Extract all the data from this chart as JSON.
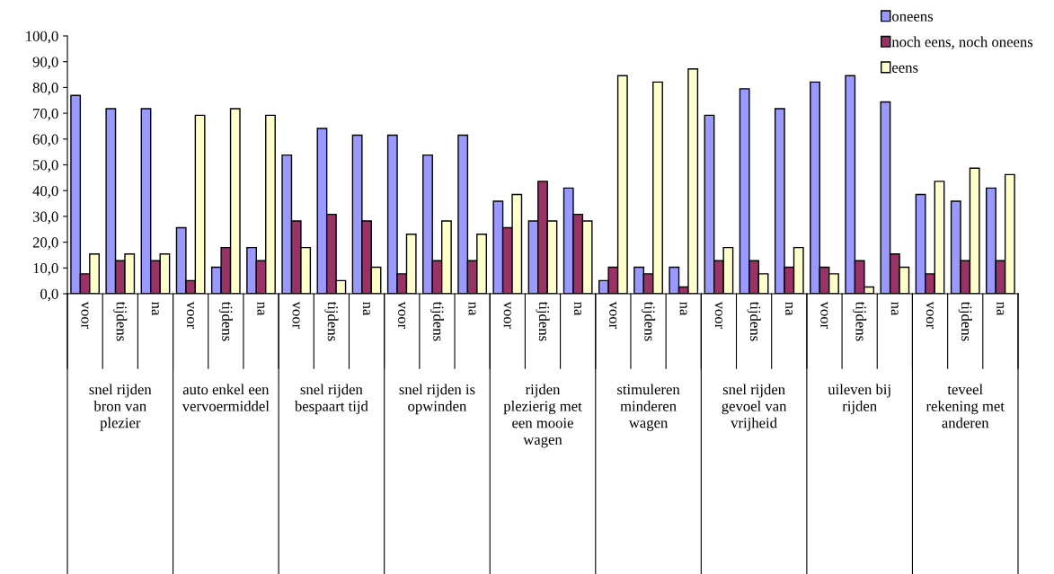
{
  "chart_data": {
    "type": "bar",
    "categories": [
      "voor",
      "tijdens",
      "na",
      "voor",
      "tijdens",
      "na",
      "voor",
      "tijdens",
      "na",
      "voor",
      "tijdens",
      "na",
      "voor",
      "tijdens",
      "na",
      "voor",
      "tijdens",
      "na",
      "voor",
      "tijdens",
      "na",
      "voor",
      "tijdens",
      "na",
      "voor",
      "tijdens",
      "na"
    ],
    "annotations": [
      "snel rijden\nbron van\nplezier",
      "auto enkel een\nvervoermiddel",
      "snel rijden\nbespaart tijd",
      "snel rijden is\nopwinden",
      "rijden\nplezierig met\neen mooie\nwagen",
      "stimuleren\nminderen\nwagen",
      "snel rijden\ngevoel van\nvrijheid",
      "uileven bij\nrijden",
      "teveel\nrekening met\nanderen"
    ],
    "series": [
      {
        "name": "oneens",
        "color": "#9999ff",
        "values": [
          76.9,
          71.8,
          71.8,
          25.6,
          10.3,
          17.9,
          53.8,
          64.1,
          61.5,
          61.5,
          53.8,
          61.5,
          35.9,
          28.2,
          41.0,
          5.1,
          10.3,
          10.3,
          69.2,
          79.5,
          71.8,
          82.1,
          84.6,
          74.4,
          38.5,
          35.9,
          41.0
        ]
      },
      {
        "name": "noch eens, noch oneens",
        "color": "#993366",
        "values": [
          7.7,
          12.8,
          12.8,
          5.1,
          17.9,
          12.8,
          28.2,
          30.8,
          28.2,
          7.7,
          12.8,
          12.8,
          25.6,
          43.6,
          30.8,
          10.3,
          7.7,
          2.6,
          12.8,
          12.8,
          10.3,
          10.3,
          12.8,
          15.4,
          7.7,
          12.8,
          12.8
        ]
      },
      {
        "name": "eens",
        "color": "#ffffcc",
        "values": [
          15.4,
          15.4,
          15.4,
          69.2,
          71.8,
          69.2,
          17.9,
          5.1,
          10.3,
          23.1,
          28.2,
          23.1,
          38.5,
          28.2,
          28.2,
          84.6,
          82.1,
          87.2,
          17.9,
          7.7,
          17.9,
          7.7,
          2.6,
          10.3,
          43.6,
          48.7,
          46.2
        ]
      }
    ],
    "ylim": [
      0,
      100
    ],
    "yticks": [
      {
        "value": 0,
        "label": "0,0"
      },
      {
        "value": 10,
        "label": "10,0"
      },
      {
        "value": 20,
        "label": "20,0"
      },
      {
        "value": 30,
        "label": "30,0"
      },
      {
        "value": 40,
        "label": "40,0"
      },
      {
        "value": 50,
        "label": "50,0"
      },
      {
        "value": 60,
        "label": "60,0"
      },
      {
        "value": 70,
        "label": "70,0"
      },
      {
        "value": 80,
        "label": "80,0"
      },
      {
        "value": 90,
        "label": "90,0"
      },
      {
        "value": 100,
        "label": "100,0"
      }
    ],
    "grid": false,
    "legend": "top right"
  }
}
